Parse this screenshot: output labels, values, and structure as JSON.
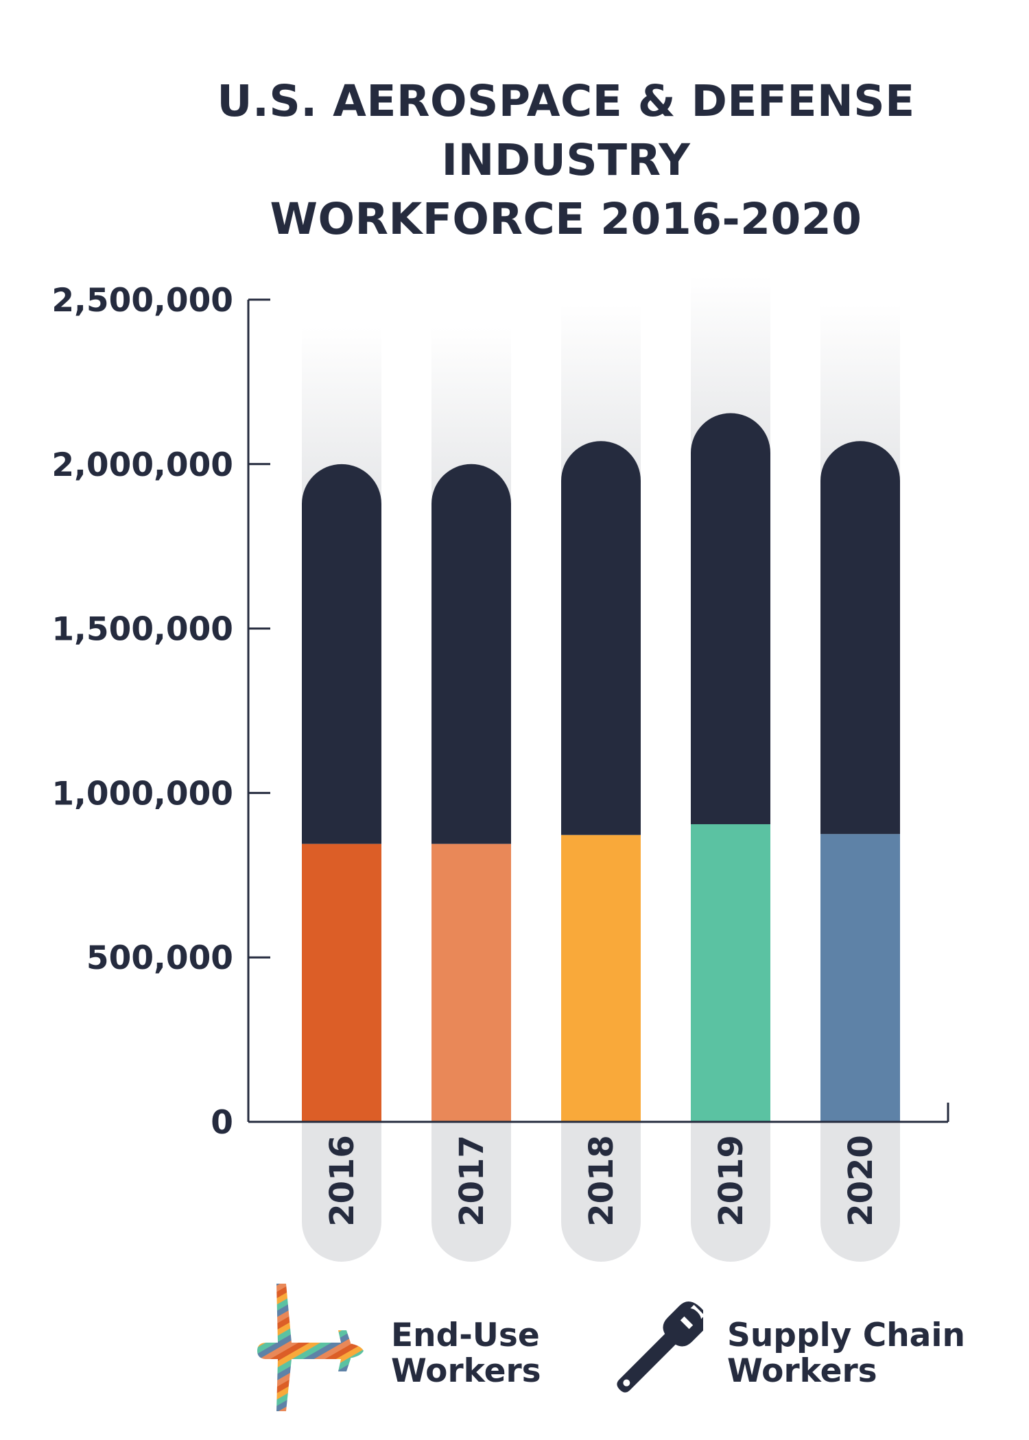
{
  "title": {
    "line1": "U.S. AEROSPACE & DEFENSE INDUSTRY",
    "line2": "WORKFORCE 2016-2020"
  },
  "chart_data": {
    "type": "bar",
    "stacked": true,
    "categories": [
      "2016",
      "2017",
      "2018",
      "2019",
      "2020"
    ],
    "series": [
      {
        "name": "End-Use Workers",
        "values": [
          845000,
          845000,
          872000,
          905000,
          875000
        ],
        "colors": [
          "#dc5e27",
          "#e98858",
          "#f9a93a",
          "#5bc2a2",
          "#5e82a7"
        ]
      },
      {
        "name": "Supply Chain Workers",
        "values": [
          1155000,
          1155000,
          1198000,
          1250000,
          1195000
        ],
        "color": "#252b3e"
      }
    ],
    "ylim": [
      0,
      2500000
    ],
    "yticks": [
      "0",
      "500,000",
      "1,000,000",
      "1,500,000",
      "2,000,000",
      "2,500,000"
    ],
    "ytick_values": [
      0,
      500000,
      1000000,
      1500000,
      2000000,
      2500000
    ],
    "grid": false,
    "legend_position": "bottom"
  },
  "legend": {
    "end_use": {
      "line1": "End-Use",
      "line2": "Workers",
      "icon": "airplane-icon"
    },
    "supply_chain": {
      "line1": "Supply Chain",
      "line2": "Workers",
      "icon": "wrench-icon"
    }
  }
}
